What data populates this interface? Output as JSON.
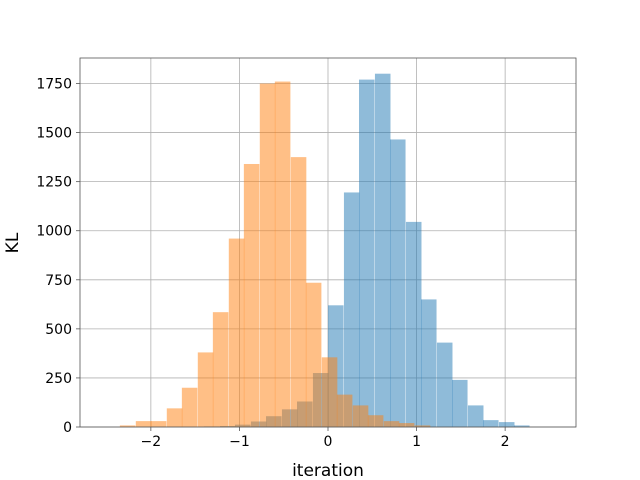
{
  "chart_data": {
    "type": "bar",
    "title": "",
    "xlabel": "iteration",
    "ylabel": "KL",
    "xlim": [
      -2.8,
      2.8
    ],
    "ylim": [
      0,
      1880
    ],
    "xticks": [
      -2,
      -1,
      0,
      1,
      2
    ],
    "xtick_labels": [
      "−2",
      "−1",
      "0",
      "1",
      "2"
    ],
    "yticks": [
      0,
      250,
      500,
      750,
      1000,
      1250,
      1500,
      1750
    ],
    "ytick_labels": [
      "0",
      "250",
      "500",
      "750",
      "1000",
      "1250",
      "1500",
      "1750"
    ],
    "grid": true,
    "legend": "none",
    "series": [
      {
        "color": "#1f77b4",
        "alpha": 0.5,
        "bin_width": 0.1754,
        "bins": [
          {
            "x0": -1.4,
            "value": 3
          },
          {
            "x0": -1.22,
            "value": 5
          },
          {
            "x0": -1.05,
            "value": 12
          },
          {
            "x0": -0.87,
            "value": 28
          },
          {
            "x0": -0.7,
            "value": 55
          },
          {
            "x0": -0.52,
            "value": 90
          },
          {
            "x0": -0.35,
            "value": 130
          },
          {
            "x0": -0.17,
            "value": 275
          },
          {
            "x0": 0.0,
            "value": 620
          },
          {
            "x0": 0.18,
            "value": 1195
          },
          {
            "x0": 0.35,
            "value": 1770
          },
          {
            "x0": 0.53,
            "value": 1800
          },
          {
            "x0": 0.7,
            "value": 1465
          },
          {
            "x0": 0.88,
            "value": 1045
          },
          {
            "x0": 1.05,
            "value": 650
          },
          {
            "x0": 1.23,
            "value": 430
          },
          {
            "x0": 1.4,
            "value": 240
          },
          {
            "x0": 1.58,
            "value": 110
          },
          {
            "x0": 1.75,
            "value": 35
          },
          {
            "x0": 1.93,
            "value": 25
          },
          {
            "x0": 2.1,
            "value": 8
          }
        ]
      },
      {
        "color": "#ff7f0e",
        "alpha": 0.5,
        "bin_width": 0.1754,
        "bins": [
          {
            "x0": -2.35,
            "value": 8
          },
          {
            "x0": -2.17,
            "value": 30
          },
          {
            "x0": -2.0,
            "value": 30
          },
          {
            "x0": -1.82,
            "value": 95
          },
          {
            "x0": -1.65,
            "value": 200
          },
          {
            "x0": -1.47,
            "value": 380
          },
          {
            "x0": -1.3,
            "value": 585
          },
          {
            "x0": -1.12,
            "value": 960
          },
          {
            "x0": -0.95,
            "value": 1340
          },
          {
            "x0": -0.77,
            "value": 1750
          },
          {
            "x0": -0.6,
            "value": 1760
          },
          {
            "x0": -0.42,
            "value": 1375
          },
          {
            "x0": -0.25,
            "value": 735
          },
          {
            "x0": -0.07,
            "value": 355
          },
          {
            "x0": 0.1,
            "value": 165
          },
          {
            "x0": 0.28,
            "value": 110
          },
          {
            "x0": 0.45,
            "value": 60
          },
          {
            "x0": 0.63,
            "value": 30
          },
          {
            "x0": 0.8,
            "value": 20
          },
          {
            "x0": 0.98,
            "value": 8
          }
        ]
      }
    ]
  }
}
